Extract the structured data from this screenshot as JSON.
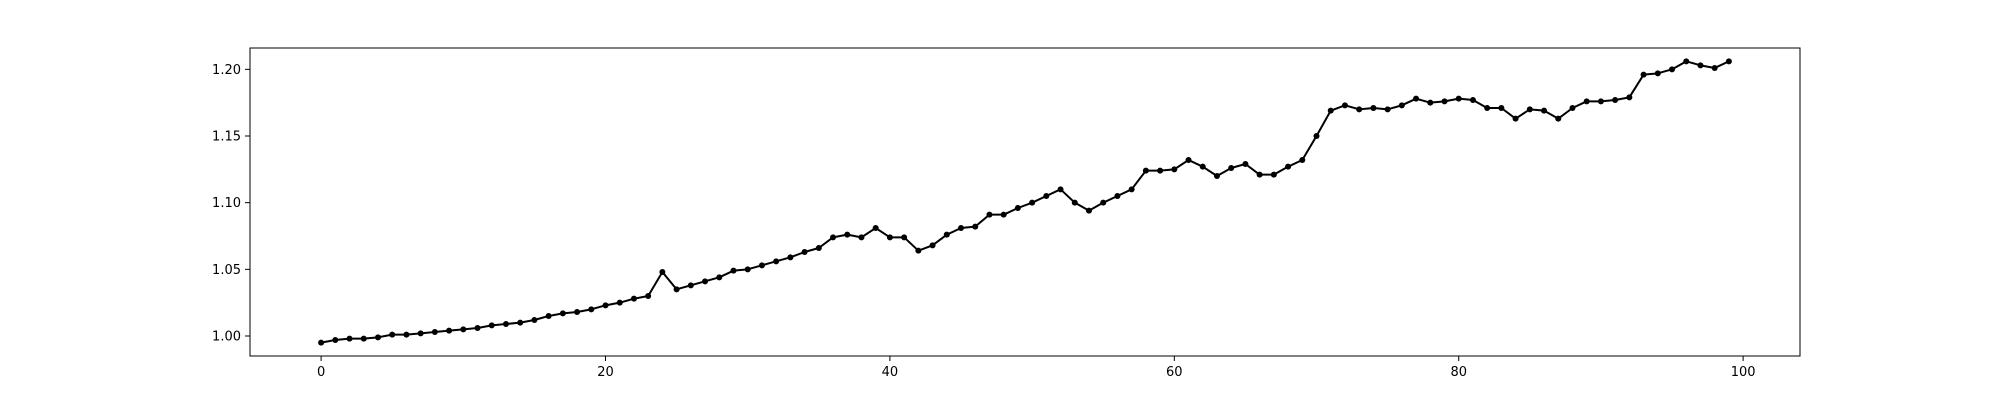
{
  "chart_data": {
    "type": "line",
    "title": "",
    "xlabel": "",
    "ylabel": "",
    "xlim": [
      -5,
      104
    ],
    "ylim": [
      0.985,
      1.216
    ],
    "xticks": [
      0,
      20,
      40,
      60,
      80,
      100
    ],
    "xtick_labels": [
      "0",
      "20",
      "40",
      "60",
      "80",
      "100"
    ],
    "yticks": [
      1.0,
      1.05,
      1.1,
      1.15,
      1.2
    ],
    "ytick_labels": [
      "1.00",
      "1.05",
      "1.10",
      "1.15",
      "1.20"
    ],
    "grid": false,
    "legend": "none",
    "series": [
      {
        "color": "#000000",
        "marker": "circle",
        "x": [
          0,
          1,
          2,
          3,
          4,
          5,
          6,
          7,
          8,
          9,
          10,
          11,
          12,
          13,
          14,
          15,
          16,
          17,
          18,
          19,
          20,
          21,
          22,
          23,
          24,
          25,
          26,
          27,
          28,
          29,
          30,
          31,
          32,
          33,
          34,
          35,
          36,
          37,
          38,
          39,
          40,
          41,
          42,
          43,
          44,
          45,
          46,
          47,
          48,
          49,
          50,
          51,
          52,
          53,
          54,
          55,
          56,
          57,
          58,
          59,
          60,
          61,
          62,
          63,
          64,
          65,
          66,
          67,
          68,
          69,
          70,
          71,
          72,
          73,
          74,
          75,
          76,
          77,
          78,
          79,
          80,
          81,
          82,
          83,
          84,
          85,
          86,
          87,
          88,
          89,
          90,
          91,
          92,
          93,
          94,
          95,
          96,
          97,
          98,
          99
        ],
        "values": [
          0.995,
          0.997,
          0.998,
          0.998,
          0.999,
          1.001,
          1.001,
          1.002,
          1.003,
          1.004,
          1.005,
          1.006,
          1.008,
          1.009,
          1.01,
          1.012,
          1.015,
          1.017,
          1.018,
          1.02,
          1.023,
          1.025,
          1.028,
          1.03,
          1.048,
          1.035,
          1.038,
          1.041,
          1.044,
          1.049,
          1.05,
          1.053,
          1.056,
          1.059,
          1.063,
          1.066,
          1.074,
          1.076,
          1.074,
          1.081,
          1.074,
          1.074,
          1.064,
          1.068,
          1.076,
          1.081,
          1.082,
          1.091,
          1.091,
          1.096,
          1.1,
          1.105,
          1.11,
          1.1,
          1.094,
          1.1,
          1.105,
          1.11,
          1.124,
          1.124,
          1.125,
          1.132,
          1.127,
          1.12,
          1.126,
          1.129,
          1.121,
          1.121,
          1.127,
          1.132,
          1.15,
          1.169,
          1.173,
          1.17,
          1.171,
          1.17,
          1.173,
          1.178,
          1.175,
          1.176,
          1.178,
          1.177,
          1.171,
          1.171,
          1.163,
          1.17,
          1.169,
          1.163,
          1.171,
          1.176,
          1.176,
          1.177,
          1.179,
          1.196,
          1.197,
          1.2,
          1.206,
          1.203,
          1.201,
          1.206
        ]
      }
    ]
  }
}
